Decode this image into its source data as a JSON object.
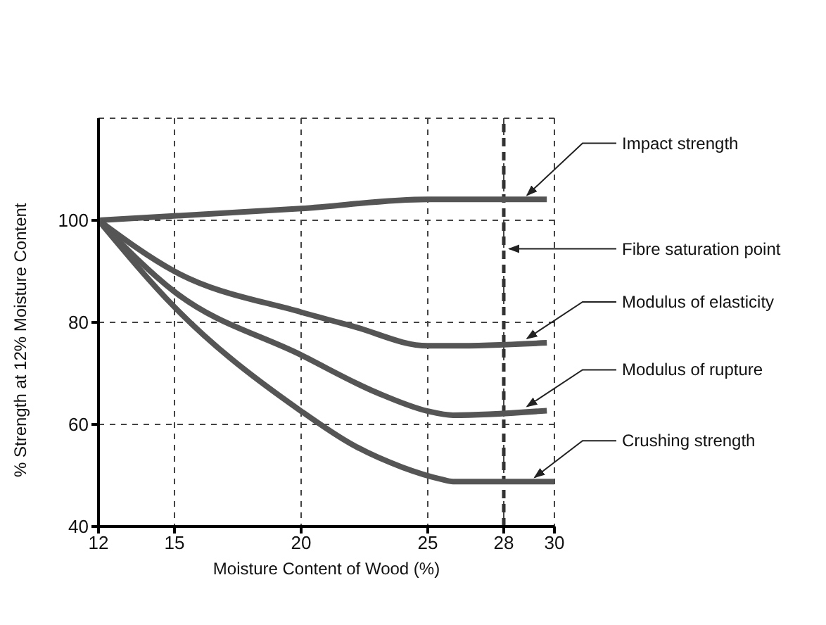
{
  "chart_data": {
    "type": "line",
    "xlabel": "Moisture Content of Wood (%)",
    "ylabel": "% Strength at 12% Moisture Content",
    "xlim": [
      12,
      30
    ],
    "xticks": [
      12,
      15,
      20,
      25,
      28,
      30
    ],
    "ylim": [
      40,
      120
    ],
    "yticks": [
      40,
      60,
      80,
      100
    ],
    "grid": true,
    "marker": "none",
    "line_style": "solid",
    "series": [
      {
        "name": "Impact strength",
        "color": "#555555",
        "x": [
          12,
          20,
          25,
          29.7
        ],
        "values": [
          100,
          102.3,
          104.1,
          104.1
        ]
      },
      {
        "name": "Modulus of elasticity",
        "color": "#555555",
        "x": [
          12,
          15,
          20,
          22,
          25,
          26,
          29.7
        ],
        "values": [
          100,
          90,
          82,
          79.3,
          75.4,
          75.4,
          76
        ]
      },
      {
        "name": "Modulus of rupture",
        "color": "#555555",
        "x": [
          12,
          15,
          20,
          23,
          25,
          26,
          29.7
        ],
        "values": [
          100,
          86,
          73.6,
          66.2,
          62.6,
          61.8,
          62.7
        ]
      },
      {
        "name": "Crushing strength",
        "color": "#555555",
        "x": [
          12,
          15,
          20,
          22,
          24,
          25.5,
          26,
          30
        ],
        "values": [
          100,
          83,
          62.6,
          56.1,
          51.6,
          49.3,
          48.8,
          48.8
        ]
      }
    ],
    "ref_lines": [
      {
        "axis": "x",
        "value": 28,
        "label": "Fibre saturation point",
        "line_style": "dashed",
        "color": "#333333"
      }
    ]
  }
}
